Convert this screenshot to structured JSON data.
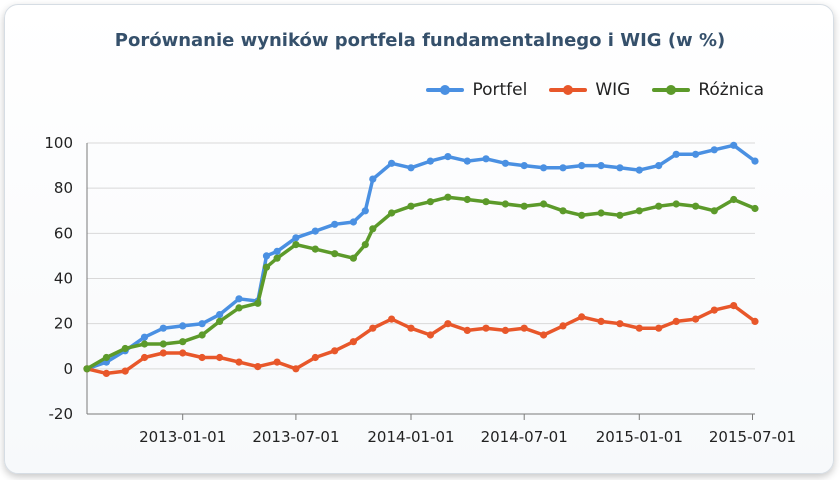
{
  "title": "Porównanie wyników portfela fundamentalnego i WIG (w %)",
  "chart_data": {
    "type": "line",
    "title": "Porównanie wyników portfela fundamentalnego i WIG (w %)",
    "xlabel": "",
    "ylabel": "",
    "ylim": [
      -20,
      100
    ],
    "yticks": [
      -20,
      0,
      20,
      40,
      60,
      80,
      100
    ],
    "xlim": [
      "2012-08-01",
      "2015-07-05"
    ],
    "xticks": [
      "2013-01-01",
      "2013-07-01",
      "2014-01-01",
      "2014-07-01",
      "2015-01-01",
      "2015-07-01"
    ],
    "grid": "horizontal",
    "legend_position": "top-right",
    "series": [
      {
        "name": "Portfel",
        "color": "#4a90e2",
        "points": [
          [
            "2012-08-01",
            0
          ],
          [
            "2012-09-01",
            3
          ],
          [
            "2012-10-01",
            8
          ],
          [
            "2012-11-01",
            14
          ],
          [
            "2012-12-01",
            18
          ],
          [
            "2013-01-01",
            19
          ],
          [
            "2013-02-01",
            20
          ],
          [
            "2013-03-01",
            24
          ],
          [
            "2013-04-01",
            31
          ],
          [
            "2013-05-01",
            30
          ],
          [
            "2013-05-15",
            50
          ],
          [
            "2013-06-01",
            52
          ],
          [
            "2013-07-01",
            58
          ],
          [
            "2013-08-01",
            61
          ],
          [
            "2013-09-01",
            64
          ],
          [
            "2013-10-01",
            65
          ],
          [
            "2013-10-20",
            70
          ],
          [
            "2013-11-01",
            84
          ],
          [
            "2013-12-01",
            91
          ],
          [
            "2014-01-01",
            89
          ],
          [
            "2014-02-01",
            92
          ],
          [
            "2014-03-01",
            94
          ],
          [
            "2014-04-01",
            92
          ],
          [
            "2014-05-01",
            93
          ],
          [
            "2014-06-01",
            91
          ],
          [
            "2014-07-01",
            90
          ],
          [
            "2014-08-01",
            89
          ],
          [
            "2014-09-01",
            89
          ],
          [
            "2014-10-01",
            90
          ],
          [
            "2014-11-01",
            90
          ],
          [
            "2014-12-01",
            89
          ],
          [
            "2015-01-01",
            88
          ],
          [
            "2015-02-01",
            90
          ],
          [
            "2015-03-01",
            95
          ],
          [
            "2015-04-01",
            95
          ],
          [
            "2015-05-01",
            97
          ],
          [
            "2015-06-01",
            99
          ],
          [
            "2015-07-05",
            92
          ]
        ]
      },
      {
        "name": "WIG",
        "color": "#e8572a",
        "points": [
          [
            "2012-08-01",
            0
          ],
          [
            "2012-09-01",
            -2
          ],
          [
            "2012-10-01",
            -1
          ],
          [
            "2012-11-01",
            5
          ],
          [
            "2012-12-01",
            7
          ],
          [
            "2013-01-01",
            7
          ],
          [
            "2013-02-01",
            5
          ],
          [
            "2013-03-01",
            5
          ],
          [
            "2013-04-01",
            3
          ],
          [
            "2013-05-01",
            1
          ],
          [
            "2013-06-01",
            3
          ],
          [
            "2013-07-01",
            0
          ],
          [
            "2013-08-01",
            5
          ],
          [
            "2013-09-01",
            8
          ],
          [
            "2013-10-01",
            12
          ],
          [
            "2013-11-01",
            18
          ],
          [
            "2013-12-01",
            22
          ],
          [
            "2014-01-01",
            18
          ],
          [
            "2014-02-01",
            15
          ],
          [
            "2014-03-01",
            20
          ],
          [
            "2014-04-01",
            17
          ],
          [
            "2014-05-01",
            18
          ],
          [
            "2014-06-01",
            17
          ],
          [
            "2014-07-01",
            18
          ],
          [
            "2014-08-01",
            15
          ],
          [
            "2014-09-01",
            19
          ],
          [
            "2014-10-01",
            23
          ],
          [
            "2014-11-01",
            21
          ],
          [
            "2014-12-01",
            20
          ],
          [
            "2015-01-01",
            18
          ],
          [
            "2015-02-01",
            18
          ],
          [
            "2015-03-01",
            21
          ],
          [
            "2015-04-01",
            22
          ],
          [
            "2015-05-01",
            26
          ],
          [
            "2015-06-01",
            28
          ],
          [
            "2015-07-05",
            21
          ]
        ]
      },
      {
        "name": "Różnica",
        "color": "#5c9a2a",
        "points": [
          [
            "2012-08-01",
            0
          ],
          [
            "2012-09-01",
            5
          ],
          [
            "2012-10-01",
            9
          ],
          [
            "2012-11-01",
            11
          ],
          [
            "2012-12-01",
            11
          ],
          [
            "2013-01-01",
            12
          ],
          [
            "2013-02-01",
            15
          ],
          [
            "2013-03-01",
            21
          ],
          [
            "2013-04-01",
            27
          ],
          [
            "2013-05-01",
            29
          ],
          [
            "2013-05-15",
            45
          ],
          [
            "2013-06-01",
            49
          ],
          [
            "2013-07-01",
            55
          ],
          [
            "2013-08-01",
            53
          ],
          [
            "2013-09-01",
            51
          ],
          [
            "2013-10-01",
            49
          ],
          [
            "2013-10-20",
            55
          ],
          [
            "2013-11-01",
            62
          ],
          [
            "2013-12-01",
            69
          ],
          [
            "2014-01-01",
            72
          ],
          [
            "2014-02-01",
            74
          ],
          [
            "2014-03-01",
            76
          ],
          [
            "2014-04-01",
            75
          ],
          [
            "2014-05-01",
            74
          ],
          [
            "2014-06-01",
            73
          ],
          [
            "2014-07-01",
            72
          ],
          [
            "2014-08-01",
            73
          ],
          [
            "2014-09-01",
            70
          ],
          [
            "2014-10-01",
            68
          ],
          [
            "2014-11-01",
            69
          ],
          [
            "2014-12-01",
            68
          ],
          [
            "2015-01-01",
            70
          ],
          [
            "2015-02-01",
            72
          ],
          [
            "2015-03-01",
            73
          ],
          [
            "2015-04-01",
            72
          ],
          [
            "2015-05-01",
            70
          ],
          [
            "2015-06-01",
            75
          ],
          [
            "2015-07-05",
            71
          ]
        ]
      }
    ]
  }
}
